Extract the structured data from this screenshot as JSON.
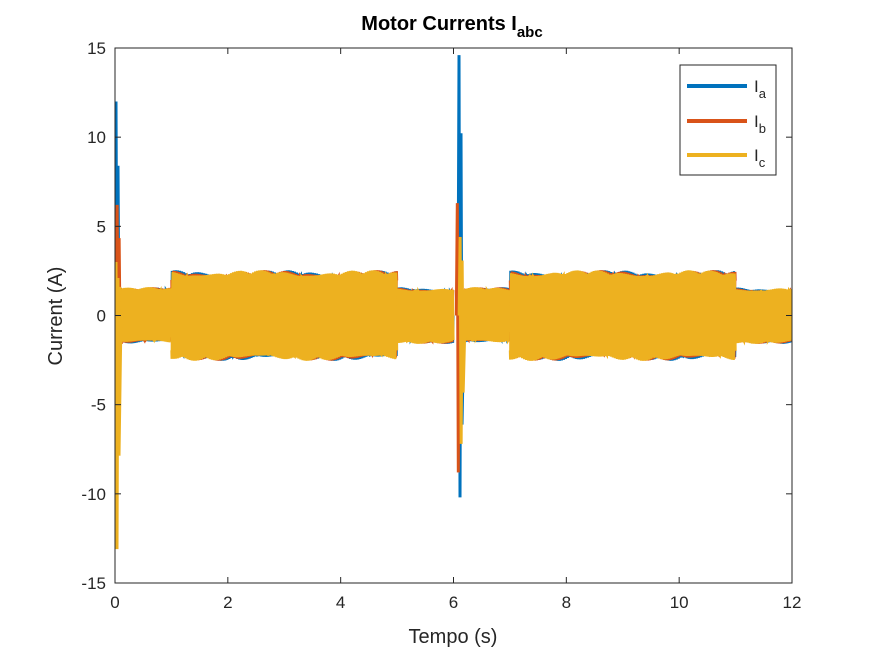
{
  "chart_data": {
    "type": "line",
    "title": "Motor Currents I",
    "title_subscript": "abc",
    "xlabel": "Tempo (s)",
    "ylabel": "Current (A)",
    "xlim": [
      0,
      12
    ],
    "ylim": [
      -15,
      15
    ],
    "xticks": [
      0,
      2,
      4,
      6,
      8,
      10,
      12
    ],
    "yticks": [
      -15,
      -10,
      -5,
      0,
      5,
      10,
      15
    ],
    "xtick_labels": [
      "0",
      "2",
      "4",
      "6",
      "8",
      "10",
      "12"
    ],
    "ytick_labels": [
      "-15",
      "-10",
      "-5",
      "0",
      "5",
      "10",
      "15"
    ],
    "grid": false,
    "legend_position": "top-right",
    "series": [
      {
        "name": "I",
        "subscript": "a",
        "color": "#0072BD",
        "envelope": [
          {
            "t0": 0.02,
            "t1": 0.12,
            "amp": 1.6
          },
          {
            "t0": 0.12,
            "t1": 1.0,
            "amp": 1.5
          },
          {
            "t0": 1.0,
            "t1": 5.0,
            "amp": 2.4
          },
          {
            "t0": 5.0,
            "t1": 6.0,
            "amp": 1.5
          },
          {
            "t0": 6.15,
            "t1": 7.0,
            "amp": 1.5
          },
          {
            "t0": 7.0,
            "t1": 11.0,
            "amp": 2.4
          },
          {
            "t0": 11.0,
            "t1": 12.0,
            "amp": 1.5
          }
        ],
        "transients": [
          {
            "t": 0.0,
            "max": 12.0,
            "min": -2.0
          },
          {
            "t": 6.08,
            "max": 14.6,
            "min": -10.2
          }
        ]
      },
      {
        "name": "I",
        "subscript": "b",
        "color": "#D95319",
        "envelope": [
          {
            "t0": 0.02,
            "t1": 0.12,
            "amp": 1.6
          },
          {
            "t0": 0.12,
            "t1": 1.0,
            "amp": 1.5
          },
          {
            "t0": 1.0,
            "t1": 5.0,
            "amp": 2.4
          },
          {
            "t0": 5.0,
            "t1": 6.0,
            "amp": 1.5
          },
          {
            "t0": 6.15,
            "t1": 7.0,
            "amp": 1.5
          },
          {
            "t0": 7.0,
            "t1": 11.0,
            "amp": 2.4
          },
          {
            "t0": 11.0,
            "t1": 12.0,
            "amp": 1.5
          }
        ],
        "transients": [
          {
            "t": 0.02,
            "max": 6.2,
            "min": -2.5
          },
          {
            "t": 6.05,
            "max": 6.3,
            "min": -8.8
          }
        ]
      },
      {
        "name": "I",
        "subscript": "c",
        "color": "#EDB120",
        "envelope": [
          {
            "t0": 0.02,
            "t1": 0.12,
            "amp": 1.6
          },
          {
            "t0": 0.12,
            "t1": 1.0,
            "amp": 1.5
          },
          {
            "t0": 1.0,
            "t1": 5.0,
            "amp": 2.4
          },
          {
            "t0": 5.0,
            "t1": 6.0,
            "amp": 1.5
          },
          {
            "t0": 6.15,
            "t1": 7.0,
            "amp": 1.5
          },
          {
            "t0": 7.0,
            "t1": 11.0,
            "amp": 2.4
          },
          {
            "t0": 11.0,
            "t1": 12.0,
            "amp": 1.5
          }
        ],
        "transients": [
          {
            "t": 0.0,
            "max": 3.0,
            "min": -13.1
          },
          {
            "t": 6.1,
            "max": 4.4,
            "min": -7.2
          }
        ]
      }
    ]
  }
}
